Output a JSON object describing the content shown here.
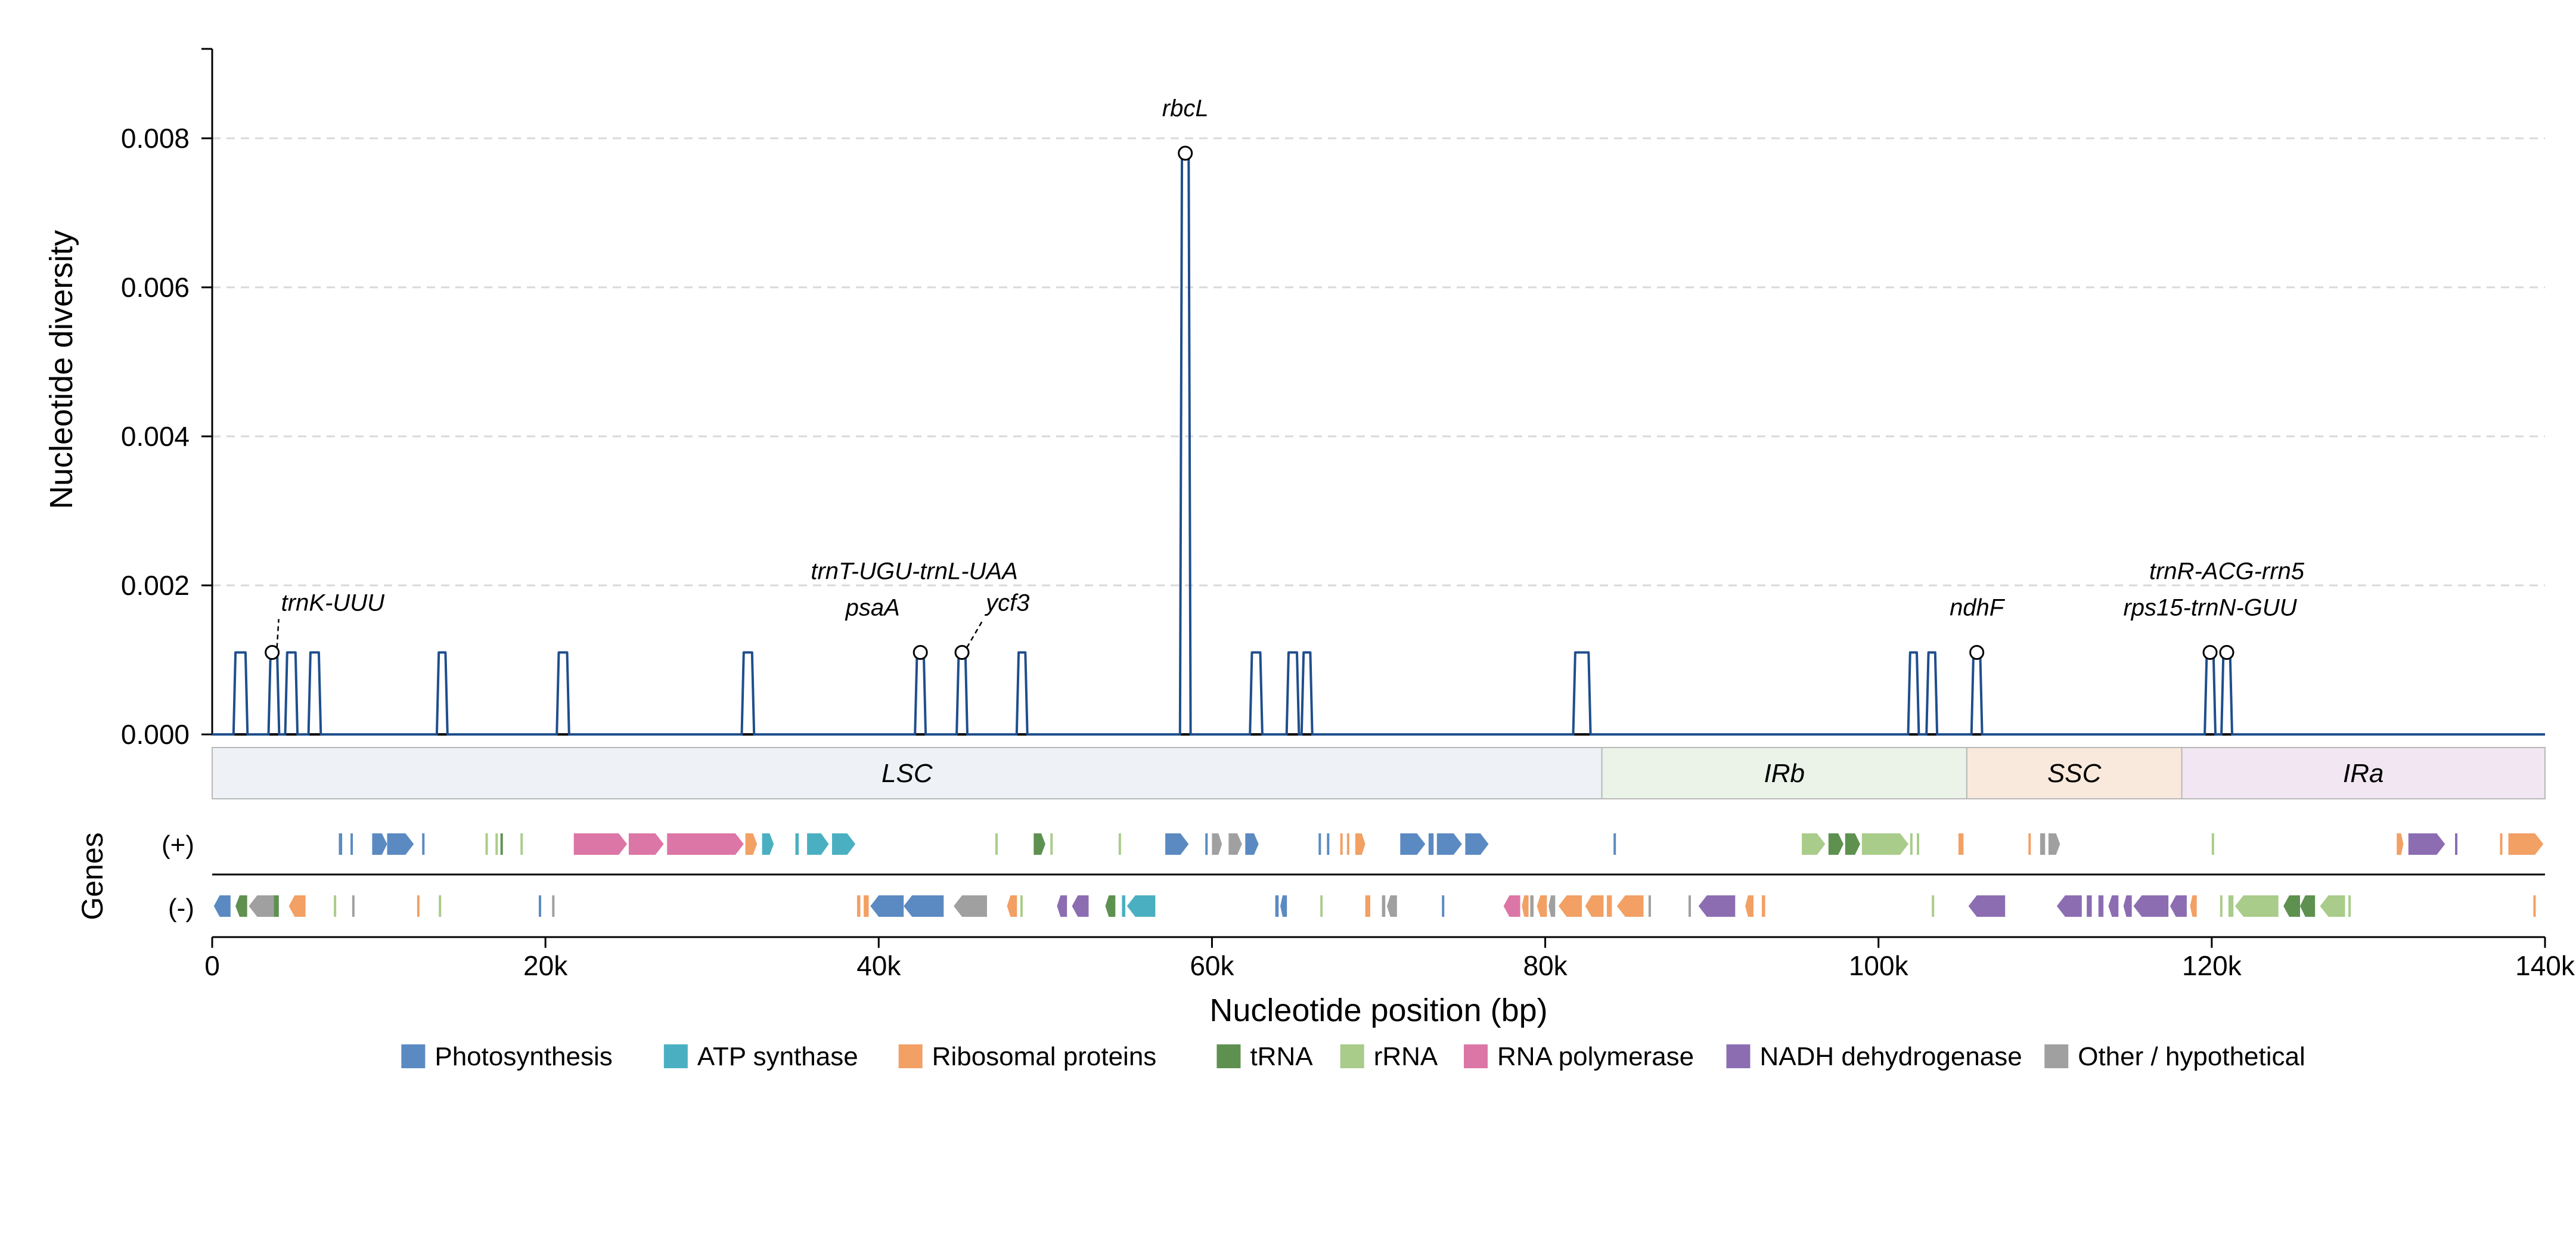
{
  "chart_data": {
    "type": "line",
    "ylabel": "Nucleotide diversity",
    "xlabel": "Nucleotide position (bp)",
    "genes_label": "Genes",
    "strand_labels": [
      "(+)",
      "(-)"
    ],
    "xlim": [
      0,
      140000
    ],
    "ylim": [
      0,
      0.0092
    ],
    "grid": "dashed horizontal",
    "x_ticks": [
      0,
      20000,
      40000,
      60000,
      80000,
      100000,
      120000,
      140000
    ],
    "x_tick_labels": [
      "0",
      "20k",
      "40k",
      "60k",
      "80k",
      "100k",
      "120k",
      "140k"
    ],
    "y_ticks": [
      0,
      0.002,
      0.004,
      0.006,
      0.008
    ],
    "y_tick_labels": [
      "0.000",
      "0.002",
      "0.004",
      "0.006",
      "0.008"
    ],
    "series": [
      {
        "color": "#1f4e8c",
        "peaks": [
          {
            "x": [
              1400,
              2000
            ],
            "y": 0.0011
          },
          {
            "x": [
              3500,
              3900
            ],
            "y": 0.0011
          },
          {
            "x": [
              4500,
              5000
            ],
            "y": 0.0011
          },
          {
            "x": [
              5900,
              6400
            ],
            "y": 0.0011
          },
          {
            "x": [
              13600,
              14000
            ],
            "y": 0.0011
          },
          {
            "x": [
              20800,
              21300
            ],
            "y": 0.0011
          },
          {
            "x": [
              31900,
              32400
            ],
            "y": 0.0011
          },
          {
            "x": [
              42300,
              42700
            ],
            "y": 0.0011
          },
          {
            "x": [
              44800,
              45200
            ],
            "y": 0.0011
          },
          {
            "x": [
              48400,
              48800
            ],
            "y": 0.0011
          },
          {
            "x": [
              58200,
              58600
            ],
            "y": 0.0078
          },
          {
            "x": [
              62400,
              62900
            ],
            "y": 0.0011
          },
          {
            "x": [
              64600,
              65100
            ],
            "y": 0.0011
          },
          {
            "x": [
              65500,
              65900
            ],
            "y": 0.0011
          },
          {
            "x": [
              81800,
              82600
            ],
            "y": 0.0011
          },
          {
            "x": [
              101900,
              102300
            ],
            "y": 0.0011
          },
          {
            "x": [
              103000,
              103400
            ],
            "y": 0.0011
          },
          {
            "x": [
              105700,
              106100
            ],
            "y": 0.0011
          },
          {
            "x": [
              119700,
              120100
            ],
            "y": 0.0011
          },
          {
            "x": [
              120700,
              121100
            ],
            "y": 0.0011
          }
        ]
      }
    ],
    "annotations": [
      {
        "text": "trnK-UUU",
        "x": 3600,
        "y": 0.0011,
        "dx": 15,
        "dy": -70,
        "leader": true
      },
      {
        "text": "psaA",
        "x": 42500,
        "y": 0.0011,
        "dx": -80,
        "dy": -62,
        "leader": false
      },
      {
        "text": "trnT-UGU-trnL-UAA",
        "x": 45000,
        "y": 0.0011,
        "dx": -80,
        "dy": -123,
        "leader": false
      },
      {
        "text": "ycf3",
        "x": 45000,
        "y": 0.0011,
        "dx": 40,
        "dy": -70,
        "leader": true
      },
      {
        "text": "rbcL",
        "x": 58400,
        "y": 0.0078,
        "dx": 0,
        "dy": -62,
        "leader": false
      },
      {
        "text": "ndhF",
        "x": 105900,
        "y": 0.0011,
        "dx": 0,
        "dy": -62,
        "leader": false
      },
      {
        "text": "trnR-ACG-rrn5",
        "x": 120900,
        "y": 0.0011,
        "dx": 0,
        "dy": -123,
        "leader": false
      },
      {
        "text": "rps15-trnN-GUU",
        "x": 119900,
        "y": 0.0011,
        "dx": 0,
        "dy": -62,
        "leader": false
      }
    ],
    "regions": [
      {
        "name": "LSC",
        "start": 0,
        "end": 83400,
        "color": "#eef2f6"
      },
      {
        "name": "IRb",
        "start": 83400,
        "end": 105300,
        "color": "#ebf3e8"
      },
      {
        "name": "SSC",
        "start": 105300,
        "end": 118200,
        "color": "#f9e9dc"
      },
      {
        "name": "IRa",
        "start": 118200,
        "end": 140000,
        "color": "#f1e6f1"
      }
    ],
    "legend": [
      {
        "label": "Photosynthesis",
        "color": "#5b8ac2"
      },
      {
        "label": "ATP synthase",
        "color": "#4ab0c1"
      },
      {
        "label": "Ribosomal proteins",
        "color": "#f2a064"
      },
      {
        "label": "tRNA",
        "color": "#5e9150"
      },
      {
        "label": "rRNA",
        "color": "#a9cc8a"
      },
      {
        "label": "RNA polymerase",
        "color": "#dc76a6"
      },
      {
        "label": "NADH dehydrogenase",
        "color": "#8c6db2"
      },
      {
        "label": "Other / hypothetical",
        "color": "#a0a0a0"
      }
    ],
    "genes_plus": [
      {
        "s": 7600,
        "e": 7800,
        "c": "#5b8ac2"
      },
      {
        "s": 8300,
        "e": 8400,
        "c": "#5b8ac2"
      },
      {
        "s": 9600,
        "e": 10500,
        "c": "#5b8ac2"
      },
      {
        "s": 10500,
        "e": 12100,
        "c": "#5b8ac2"
      },
      {
        "s": 12600,
        "e": 12700,
        "c": "#5b8ac2"
      },
      {
        "s": 16400,
        "e": 16500,
        "c": "#a9cc8a"
      },
      {
        "s": 17000,
        "e": 17100,
        "c": "#a9cc8a"
      },
      {
        "s": 17300,
        "e": 17400,
        "c": "#5e9150"
      },
      {
        "s": 18500,
        "e": 18600,
        "c": "#a9cc8a"
      },
      {
        "s": 21700,
        "e": 24900,
        "c": "#dc76a6"
      },
      {
        "s": 25000,
        "e": 27100,
        "c": "#dc76a6"
      },
      {
        "s": 27300,
        "e": 31900,
        "c": "#dc76a6"
      },
      {
        "s": 32000,
        "e": 32700,
        "c": "#f2a064"
      },
      {
        "s": 33000,
        "e": 33700,
        "c": "#4ab0c1"
      },
      {
        "s": 35000,
        "e": 35200,
        "c": "#4ab0c1"
      },
      {
        "s": 35700,
        "e": 37000,
        "c": "#4ab0c1"
      },
      {
        "s": 37200,
        "e": 38600,
        "c": "#4ab0c1"
      },
      {
        "s": 47000,
        "e": 47100,
        "c": "#a9cc8a"
      },
      {
        "s": 49300,
        "e": 50000,
        "c": "#5e9150"
      },
      {
        "s": 50300,
        "e": 50400,
        "c": "#a9cc8a"
      },
      {
        "s": 54400,
        "e": 54500,
        "c": "#a9cc8a"
      },
      {
        "s": 57200,
        "e": 58600,
        "c": "#5b8ac2"
      },
      {
        "s": 59600,
        "e": 59700,
        "c": "#5b8ac2"
      },
      {
        "s": 60000,
        "e": 60600,
        "c": "#a0a0a0"
      },
      {
        "s": 61000,
        "e": 61800,
        "c": "#a0a0a0"
      },
      {
        "s": 62000,
        "e": 62800,
        "c": "#5b8ac2"
      },
      {
        "s": 66400,
        "e": 66500,
        "c": "#5b8ac2"
      },
      {
        "s": 66900,
        "e": 67000,
        "c": "#5b8ac2"
      },
      {
        "s": 67700,
        "e": 67800,
        "c": "#f2a064"
      },
      {
        "s": 68100,
        "e": 68200,
        "c": "#f2a064"
      },
      {
        "s": 68600,
        "e": 69200,
        "c": "#f2a064"
      },
      {
        "s": 71300,
        "e": 72800,
        "c": "#5b8ac2"
      },
      {
        "s": 73000,
        "e": 73300,
        "c": "#5b8ac2"
      },
      {
        "s": 73500,
        "e": 75000,
        "c": "#5b8ac2"
      },
      {
        "s": 75200,
        "e": 76600,
        "c": "#5b8ac2"
      },
      {
        "s": 84100,
        "e": 84200,
        "c": "#5b8ac2"
      },
      {
        "s": 95400,
        "e": 96800,
        "c": "#a9cc8a"
      },
      {
        "s": 97000,
        "e": 97900,
        "c": "#5e9150"
      },
      {
        "s": 98000,
        "e": 98900,
        "c": "#5e9150"
      },
      {
        "s": 99000,
        "e": 101800,
        "c": "#a9cc8a"
      },
      {
        "s": 101900,
        "e": 102000,
        "c": "#a9cc8a"
      },
      {
        "s": 102300,
        "e": 102400,
        "c": "#a9cc8a"
      },
      {
        "s": 104800,
        "e": 105100,
        "c": "#f2a064"
      },
      {
        "s": 109000,
        "e": 109100,
        "c": "#f2a064"
      },
      {
        "s": 109700,
        "e": 110000,
        "c": "#a0a0a0"
      },
      {
        "s": 110200,
        "e": 110900,
        "c": "#a0a0a0"
      },
      {
        "s": 120000,
        "e": 120100,
        "c": "#a9cc8a"
      },
      {
        "s": 131100,
        "e": 131500,
        "c": "#f2a064"
      },
      {
        "s": 131800,
        "e": 134000,
        "c": "#8c6db2"
      },
      {
        "s": 134600,
        "e": 134700,
        "c": "#8c6db2"
      },
      {
        "s": 137300,
        "e": 137400,
        "c": "#f2a064"
      },
      {
        "s": 137800,
        "e": 139900,
        "c": "#f2a064"
      }
    ],
    "genes_minus": [
      {
        "s": 100,
        "e": 1100,
        "c": "#5b8ac2"
      },
      {
        "s": 1400,
        "e": 2100,
        "c": "#5e9150"
      },
      {
        "s": 2200,
        "e": 3700,
        "c": "#a0a0a0"
      },
      {
        "s": 3700,
        "e": 4000,
        "c": "#5e9150"
      },
      {
        "s": 4600,
        "e": 5600,
        "c": "#f2a064"
      },
      {
        "s": 7300,
        "e": 7400,
        "c": "#a9cc8a"
      },
      {
        "s": 8400,
        "e": 8500,
        "c": "#a0a0a0"
      },
      {
        "s": 12300,
        "e": 12400,
        "c": "#f2a064"
      },
      {
        "s": 13600,
        "e": 13700,
        "c": "#a9cc8a"
      },
      {
        "s": 19600,
        "e": 19700,
        "c": "#5b8ac2"
      },
      {
        "s": 20400,
        "e": 20500,
        "c": "#a0a0a0"
      },
      {
        "s": 38700,
        "e": 38900,
        "c": "#f2a064"
      },
      {
        "s": 39100,
        "e": 39400,
        "c": "#f2a064"
      },
      {
        "s": 39500,
        "e": 41500,
        "c": "#5b8ac2"
      },
      {
        "s": 41500,
        "e": 43900,
        "c": "#5b8ac2"
      },
      {
        "s": 44500,
        "e": 46500,
        "c": "#a0a0a0"
      },
      {
        "s": 47700,
        "e": 48300,
        "c": "#f2a064"
      },
      {
        "s": 48500,
        "e": 48600,
        "c": "#a9cc8a"
      },
      {
        "s": 50700,
        "e": 51300,
        "c": "#8c6db2"
      },
      {
        "s": 51600,
        "e": 52600,
        "c": "#8c6db2"
      },
      {
        "s": 53600,
        "e": 54200,
        "c": "#5e9150"
      },
      {
        "s": 54600,
        "e": 54800,
        "c": "#4ab0c1"
      },
      {
        "s": 54900,
        "e": 56600,
        "c": "#4ab0c1"
      },
      {
        "s": 63800,
        "e": 64000,
        "c": "#5b8ac2"
      },
      {
        "s": 64100,
        "e": 64500,
        "c": "#5b8ac2"
      },
      {
        "s": 66500,
        "e": 66600,
        "c": "#a9cc8a"
      },
      {
        "s": 69200,
        "e": 69500,
        "c": "#f2a064"
      },
      {
        "s": 70200,
        "e": 70400,
        "c": "#a0a0a0"
      },
      {
        "s": 70500,
        "e": 71100,
        "c": "#a0a0a0"
      },
      {
        "s": 73800,
        "e": 73900,
        "c": "#5b8ac2"
      },
      {
        "s": 77500,
        "e": 78500,
        "c": "#dc76a6"
      },
      {
        "s": 78600,
        "e": 79000,
        "c": "#f2a064"
      },
      {
        "s": 79100,
        "e": 79300,
        "c": "#a0a0a0"
      },
      {
        "s": 79500,
        "e": 80100,
        "c": "#f2a064"
      },
      {
        "s": 80200,
        "e": 80600,
        "c": "#a0a0a0"
      },
      {
        "s": 80800,
        "e": 82200,
        "c": "#f2a064"
      },
      {
        "s": 82400,
        "e": 83500,
        "c": "#f2a064"
      },
      {
        "s": 83700,
        "e": 84000,
        "c": "#f2a064"
      },
      {
        "s": 84300,
        "e": 85900,
        "c": "#f2a064"
      },
      {
        "s": 86200,
        "e": 86300,
        "c": "#a0a0a0"
      },
      {
        "s": 88600,
        "e": 88700,
        "c": "#a0a0a0"
      },
      {
        "s": 89200,
        "e": 91400,
        "c": "#8c6db2"
      },
      {
        "s": 92000,
        "e": 92500,
        "c": "#f2a064"
      },
      {
        "s": 93000,
        "e": 93200,
        "c": "#f2a064"
      },
      {
        "s": 103200,
        "e": 103300,
        "c": "#a9cc8a"
      },
      {
        "s": 105400,
        "e": 107600,
        "c": "#8c6db2"
      },
      {
        "s": 110700,
        "e": 112200,
        "c": "#8c6db2"
      },
      {
        "s": 112500,
        "e": 112800,
        "c": "#8c6db2"
      },
      {
        "s": 113200,
        "e": 113500,
        "c": "#8c6db2"
      },
      {
        "s": 113800,
        "e": 114400,
        "c": "#8c6db2"
      },
      {
        "s": 114700,
        "e": 115200,
        "c": "#8c6db2"
      },
      {
        "s": 115300,
        "e": 117400,
        "c": "#8c6db2"
      },
      {
        "s": 117500,
        "e": 118500,
        "c": "#8c6db2"
      },
      {
        "s": 118700,
        "e": 119100,
        "c": "#f2a064"
      },
      {
        "s": 120500,
        "e": 120600,
        "c": "#a9cc8a"
      },
      {
        "s": 121000,
        "e": 121300,
        "c": "#a9cc8a"
      },
      {
        "s": 121400,
        "e": 124000,
        "c": "#a9cc8a"
      },
      {
        "s": 124300,
        "e": 125300,
        "c": "#5e9150"
      },
      {
        "s": 125300,
        "e": 126200,
        "c": "#5e9150"
      },
      {
        "s": 126500,
        "e": 128000,
        "c": "#a9cc8a"
      },
      {
        "s": 128200,
        "e": 128300,
        "c": "#a9cc8a"
      },
      {
        "s": 139300,
        "e": 139400,
        "c": "#f2a064"
      }
    ]
  }
}
